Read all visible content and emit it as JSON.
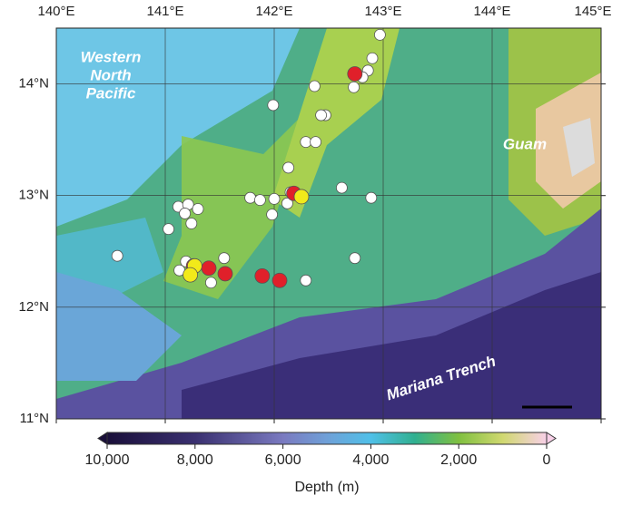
{
  "map": {
    "lonlim": [
      140,
      145
    ],
    "latlim": [
      11,
      14.5
    ],
    "lon_ticks": [
      {
        "value": 140,
        "label": "140°E"
      },
      {
        "value": 141,
        "label": "141°E"
      },
      {
        "value": 142,
        "label": "142°E"
      },
      {
        "value": 143,
        "label": "143°E"
      },
      {
        "value": 144,
        "label": "144°E"
      },
      {
        "value": 145,
        "label": "145°E"
      }
    ],
    "lat_ticks": [
      {
        "value": 11,
        "label": "11°N"
      },
      {
        "value": 12,
        "label": "12°N"
      },
      {
        "value": 13,
        "label": "13°N"
      },
      {
        "value": 14,
        "label": "14°N"
      }
    ],
    "places": {
      "western_pacific": [
        "Western",
        "North",
        "Pacific"
      ],
      "guam": "Guam",
      "trench": "Mariana Trench"
    },
    "sites": [
      {
        "color": "#ffffff",
        "lon": [
          142.97,
          142.9,
          142.86,
          142.81,
          142.73,
          142.37,
          141.99,
          142.47,
          142.43,
          142.29,
          142.38,
          142.13,
          142.62,
          142.89,
          141.78,
          141.87,
          142.0,
          142.15,
          142.12,
          141.98,
          141.12,
          141.21,
          141.3,
          141.18,
          141.03,
          141.24,
          140.56,
          142.74,
          141.54,
          141.19,
          141.13,
          141.42,
          142.29
        ],
        "lat": [
          14.44,
          14.23,
          14.12,
          14.06,
          13.97,
          13.98,
          13.81,
          13.72,
          13.72,
          13.48,
          13.48,
          13.25,
          13.07,
          12.98,
          12.98,
          12.96,
          12.97,
          13.03,
          12.93,
          12.83,
          12.9,
          12.92,
          12.88,
          12.84,
          12.7,
          12.75,
          12.46,
          12.44,
          12.44,
          12.41,
          12.33,
          12.22,
          12.24
        ]
      },
      {
        "color": "#e0202a",
        "lon": [
          142.74,
          142.18,
          141.26,
          141.4,
          141.55,
          141.89,
          142.05
        ],
        "lat": [
          14.09,
          13.02,
          12.37,
          12.35,
          12.3,
          12.28,
          12.24
        ]
      },
      {
        "color": "#f2ea1a",
        "lon": [
          142.25,
          141.27,
          141.23
        ],
        "lat": [
          12.99,
          12.37,
          12.29
        ]
      }
    ],
    "colorbar": {
      "title": "Depth (m)",
      "range": [
        10000,
        0
      ],
      "ticks": [
        {
          "value": 10000,
          "label": "10,000"
        },
        {
          "value": 8000,
          "label": "8,000"
        },
        {
          "value": 6000,
          "label": "6,000"
        },
        {
          "value": 4000,
          "label": "4,000"
        },
        {
          "value": 2000,
          "label": "2,000"
        },
        0
      ]
    }
  }
}
